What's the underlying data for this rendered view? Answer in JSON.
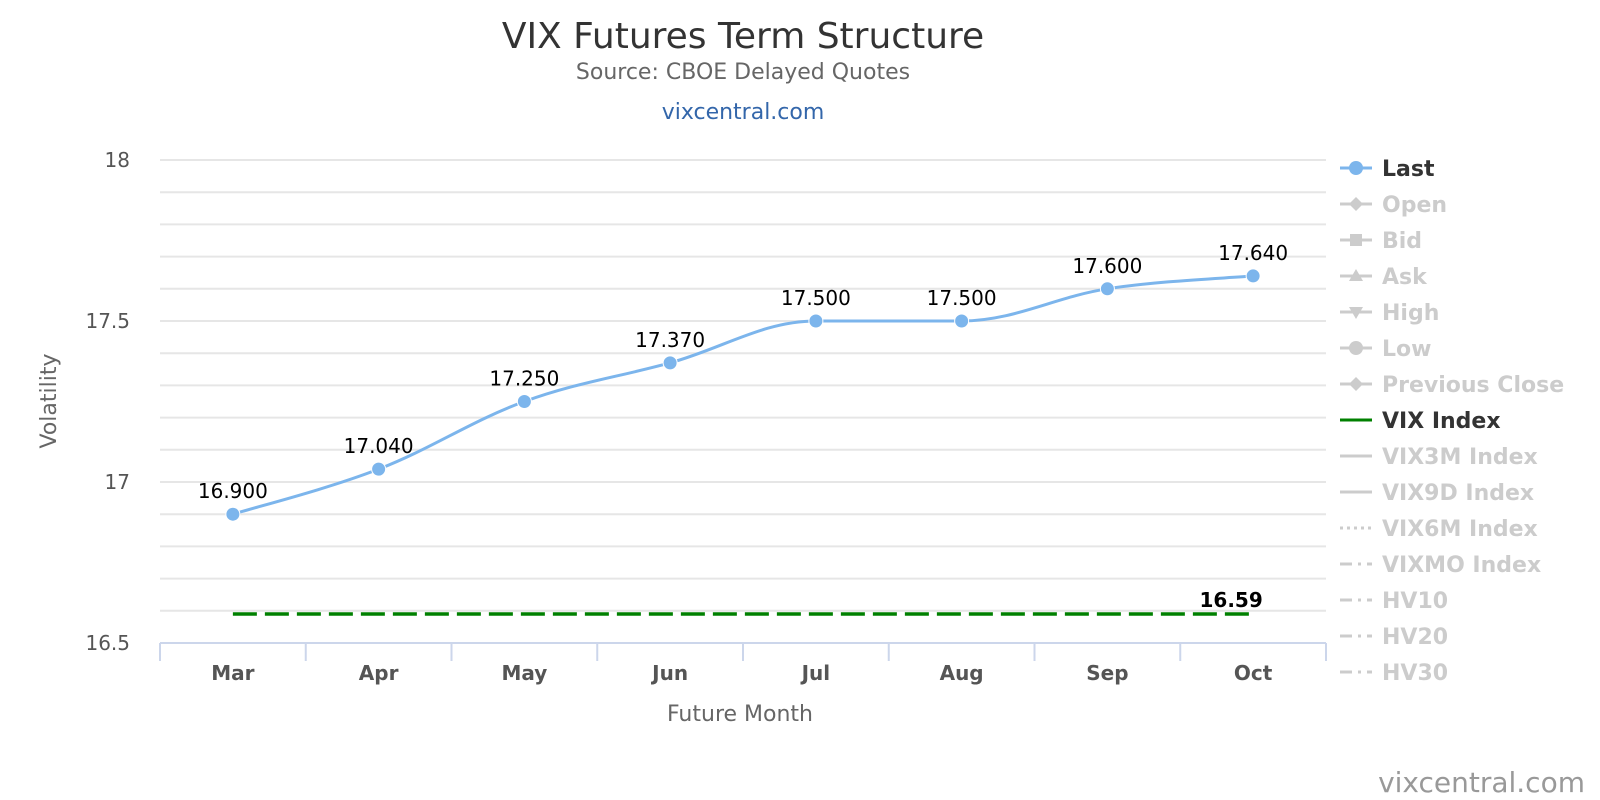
{
  "chart_data": {
    "type": "line",
    "title": "VIX Futures Term Structure",
    "subtitle": "Source: CBOE Delayed Quotes",
    "site_link": "vixcentral.com",
    "credit": "vixcentral.com",
    "xlabel": "Future Month",
    "ylabel": "Volatility",
    "categories": [
      "Mar",
      "Apr",
      "May",
      "Jun",
      "Jul",
      "Aug",
      "Sep",
      "Oct"
    ],
    "ylim": [
      16.5,
      18
    ],
    "yticks": [
      16.5,
      17,
      17.5,
      18
    ],
    "ytick_labels": [
      "16.5",
      "17",
      "17.5",
      "18"
    ],
    "minor_grid_step": 0.1,
    "grid": true,
    "legend_position": "right",
    "series": [
      {
        "name": "Last",
        "values": [
          16.9,
          17.04,
          17.25,
          17.37,
          17.5,
          17.5,
          17.6,
          17.64
        ],
        "labels": [
          "16.900",
          "17.040",
          "17.250",
          "17.370",
          "17.500",
          "17.500",
          "17.600",
          "17.640"
        ],
        "color": "#7cb5ec",
        "style": "smooth-line-with-markers"
      },
      {
        "name": "VIX Index",
        "values": [
          16.59,
          16.59,
          16.59,
          16.59,
          16.59,
          16.59,
          16.59,
          16.59
        ],
        "end_label": "16.59",
        "color": "#008000",
        "style": "dashed"
      }
    ],
    "legend": [
      {
        "name": "Last",
        "active": true,
        "symbol": "circle-line",
        "color": "#7cb5ec"
      },
      {
        "name": "Open",
        "active": false,
        "symbol": "diamond-line"
      },
      {
        "name": "Bid",
        "active": false,
        "symbol": "square-line"
      },
      {
        "name": "Ask",
        "active": false,
        "symbol": "triangle-line"
      },
      {
        "name": "High",
        "active": false,
        "symbol": "triangle-down-line"
      },
      {
        "name": "Low",
        "active": false,
        "symbol": "circle-line"
      },
      {
        "name": "Previous Close",
        "active": false,
        "symbol": "diamond-line"
      },
      {
        "name": "VIX Index",
        "active": true,
        "symbol": "line",
        "color": "#008000"
      },
      {
        "name": "VIX3M Index",
        "active": false,
        "symbol": "line"
      },
      {
        "name": "VIX9D Index",
        "active": false,
        "symbol": "line"
      },
      {
        "name": "VIX6M Index",
        "active": false,
        "symbol": "dotted-line"
      },
      {
        "name": "VIXMO Index",
        "active": false,
        "symbol": "dash-dot-line"
      },
      {
        "name": "HV10",
        "active": false,
        "symbol": "dash-dot-line"
      },
      {
        "name": "HV20",
        "active": false,
        "symbol": "dash-dot-line"
      },
      {
        "name": "HV30",
        "active": false,
        "symbol": "dash-dot-line"
      }
    ],
    "inactive_color": "#cccccc",
    "active_text_color": "#333333"
  }
}
